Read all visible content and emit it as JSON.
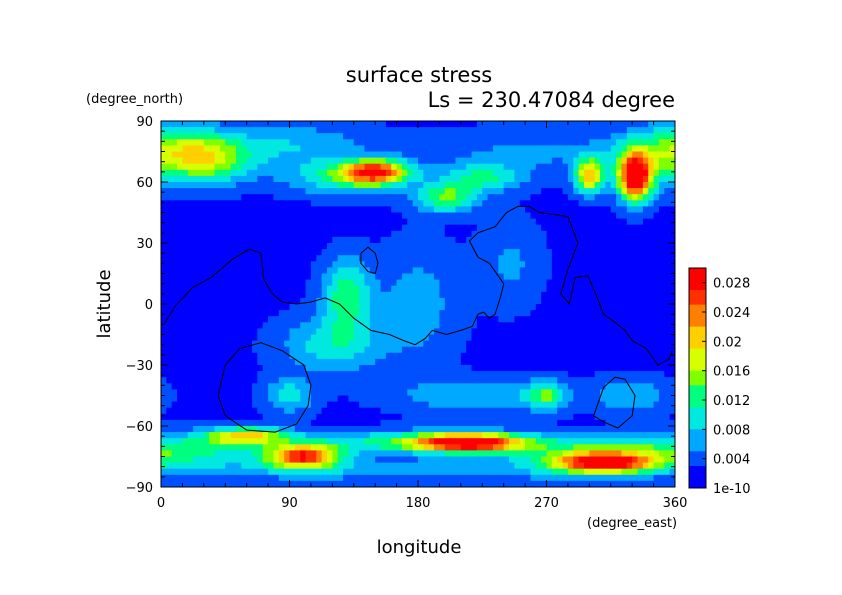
{
  "chart_data": {
    "type": "heatmap",
    "title": "surface stress",
    "subtitle": "Ls = 230.47084 degree",
    "xlabel": "longitude",
    "ylabel": "latitude",
    "x_unit": "(degree_east)",
    "y_unit": "(degree_north)",
    "xlim": [
      0,
      360
    ],
    "ylim": [
      -90,
      90
    ],
    "x_ticks": [
      "0",
      "90",
      "180",
      "270",
      "360"
    ],
    "y_ticks": [
      "90",
      "60",
      "30",
      "0",
      "−30",
      "−60",
      "−90"
    ],
    "colorbar": {
      "tick_labels": [
        "0.028",
        "0.024",
        "0.02",
        "0.016",
        "0.012",
        "0.008",
        "0.004",
        "1e-10"
      ],
      "tick_values": [
        0.028,
        0.024,
        0.02,
        0.016,
        0.012,
        0.008,
        0.004,
        0
      ],
      "vmin": 0,
      "vmax": 0.03
    },
    "colormap": [
      "#0000ff",
      "#0050ff",
      "#00a8ff",
      "#00e8e0",
      "#00ff80",
      "#80ff00",
      "#d8ff00",
      "#ffd000",
      "#ff8000",
      "#ff3000",
      "#ff0000"
    ],
    "background_level": 0.002,
    "features": [
      {
        "lon": 30,
        "lat": 70,
        "sx": 22,
        "sy": 8,
        "value": 0.013
      },
      {
        "lon": 10,
        "lat": 78,
        "sx": 25,
        "sy": 8,
        "value": 0.008
      },
      {
        "lon": 90,
        "lat": 78,
        "sx": 40,
        "sy": 8,
        "value": 0.006
      },
      {
        "lon": 150,
        "lat": 65,
        "sx": 16,
        "sy": 4,
        "value": 0.022
      },
      {
        "lon": 130,
        "lat": 62,
        "sx": 30,
        "sy": 6,
        "value": 0.009
      },
      {
        "lon": 200,
        "lat": 52,
        "sx": 15,
        "sy": 5,
        "value": 0.012
      },
      {
        "lon": 225,
        "lat": 62,
        "sx": 20,
        "sy": 5,
        "value": 0.009
      },
      {
        "lon": 300,
        "lat": 63,
        "sx": 7,
        "sy": 6,
        "value": 0.019
      },
      {
        "lon": 332,
        "lat": 62,
        "sx": 8,
        "sy": 8,
        "value": 0.028
      },
      {
        "lon": 340,
        "lat": 70,
        "sx": 18,
        "sy": 10,
        "value": 0.007
      },
      {
        "lon": 260,
        "lat": 75,
        "sx": 50,
        "sy": 8,
        "value": 0.004
      },
      {
        "lon": 130,
        "lat": 5,
        "sx": 12,
        "sy": 12,
        "value": 0.011
      },
      {
        "lon": 120,
        "lat": -20,
        "sx": 25,
        "sy": 10,
        "value": 0.008
      },
      {
        "lon": 180,
        "lat": 0,
        "sx": 20,
        "sy": 20,
        "value": 0.005
      },
      {
        "lon": 245,
        "lat": 20,
        "sx": 15,
        "sy": 15,
        "value": 0.004
      },
      {
        "lon": 90,
        "lat": -45,
        "sx": 12,
        "sy": 6,
        "value": 0.008
      },
      {
        "lon": 270,
        "lat": -45,
        "sx": 10,
        "sy": 5,
        "value": 0.01
      },
      {
        "lon": 220,
        "lat": -45,
        "sx": 40,
        "sy": 6,
        "value": 0.006
      },
      {
        "lon": 330,
        "lat": -45,
        "sx": 20,
        "sy": 6,
        "value": 0.006
      },
      {
        "lon": 60,
        "lat": -65,
        "sx": 20,
        "sy": 3,
        "value": 0.016
      },
      {
        "lon": 100,
        "lat": -75,
        "sx": 18,
        "sy": 4,
        "value": 0.024
      },
      {
        "lon": 215,
        "lat": -68,
        "sx": 25,
        "sy": 3,
        "value": 0.024
      },
      {
        "lon": 180,
        "lat": -68,
        "sx": 60,
        "sy": 4,
        "value": 0.01
      },
      {
        "lon": 310,
        "lat": -78,
        "sx": 25,
        "sy": 3.5,
        "value": 0.025
      },
      {
        "lon": 300,
        "lat": -72,
        "sx": 50,
        "sy": 5,
        "value": 0.008
      },
      {
        "lon": 20,
        "lat": -72,
        "sx": 40,
        "sy": 6,
        "value": 0.008
      },
      {
        "lon": 180,
        "lat": -82,
        "sx": 150,
        "sy": 4,
        "value": 0.005
      }
    ],
    "contours": [
      [
        [
          2,
          -10
        ],
        [
          10,
          -1
        ],
        [
          22,
          8
        ],
        [
          35,
          13
        ],
        [
          50,
          22
        ],
        [
          62,
          27
        ],
        [
          70,
          25
        ],
        [
          72,
          12
        ],
        [
          78,
          5
        ],
        [
          85,
          1
        ],
        [
          95,
          0
        ],
        [
          105,
          1
        ],
        [
          115,
          3
        ],
        [
          125,
          0
        ],
        [
          135,
          -7
        ],
        [
          147,
          -13
        ],
        [
          160,
          -15
        ],
        [
          170,
          -18
        ],
        [
          178,
          -20
        ],
        [
          185,
          -17
        ],
        [
          190,
          -13
        ],
        [
          200,
          -15
        ],
        [
          210,
          -13
        ],
        [
          218,
          -11
        ],
        [
          222,
          -5
        ],
        [
          226,
          -4
        ],
        [
          230,
          -7
        ],
        [
          234,
          -5
        ],
        [
          238,
          4
        ],
        [
          240,
          10
        ],
        [
          230,
          20
        ],
        [
          222,
          23
        ],
        [
          216,
          31
        ],
        [
          222,
          35
        ],
        [
          234,
          38
        ],
        [
          242,
          45
        ],
        [
          250,
          48
        ],
        [
          258,
          48
        ],
        [
          265,
          45
        ],
        [
          275,
          44
        ],
        [
          285,
          43
        ],
        [
          292,
          30
        ],
        [
          285,
          17
        ],
        [
          280,
          5
        ],
        [
          286,
          0
        ],
        [
          290,
          13
        ],
        [
          299,
          14
        ],
        [
          305,
          4
        ],
        [
          310,
          -5
        ],
        [
          316,
          -8
        ],
        [
          325,
          -13
        ],
        [
          330,
          -18
        ],
        [
          340,
          -22
        ],
        [
          348,
          -30
        ],
        [
          356,
          -27
        ],
        [
          358,
          -23
        ]
      ],
      [
        [
          140,
          25
        ],
        [
          145,
          28
        ],
        [
          150,
          25
        ],
        [
          152,
          20
        ],
        [
          150,
          15
        ],
        [
          145,
          16
        ],
        [
          140,
          20
        ],
        [
          140,
          25
        ]
      ],
      [
        [
          40,
          -45
        ],
        [
          45,
          -30
        ],
        [
          55,
          -22
        ],
        [
          70,
          -19
        ],
        [
          85,
          -23
        ],
        [
          100,
          -30
        ],
        [
          105,
          -40
        ],
        [
          103,
          -50
        ],
        [
          95,
          -59
        ],
        [
          80,
          -63
        ],
        [
          60,
          -62
        ],
        [
          45,
          -55
        ],
        [
          40,
          -45
        ]
      ],
      [
        [
          303,
          -55
        ],
        [
          310,
          -41
        ],
        [
          318,
          -36
        ],
        [
          325,
          -37
        ],
        [
          332,
          -45
        ],
        [
          330,
          -55
        ],
        [
          320,
          -61
        ],
        [
          310,
          -58
        ],
        [
          303,
          -55
        ]
      ]
    ]
  }
}
